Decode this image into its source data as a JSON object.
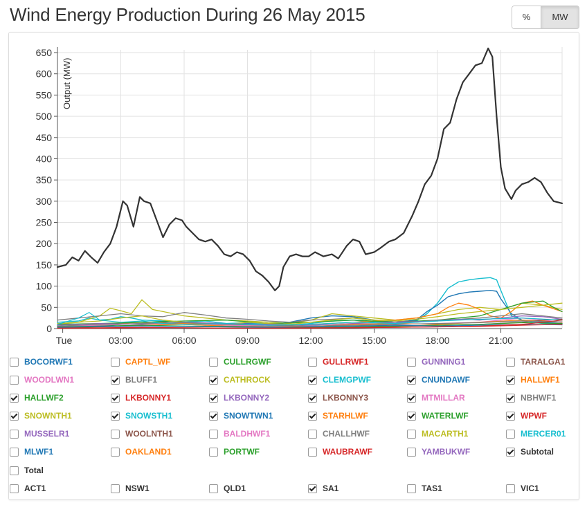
{
  "title": "Wind Energy Production During 26 May 2015",
  "unit_toggle": {
    "percent_label": "%",
    "mw_label": "MW",
    "active": "MW"
  },
  "colors": {
    "subtotal": "#333333",
    "grid": "#e2e2e2",
    "axis": "#555555"
  },
  "chart_data": {
    "type": "line",
    "title": "Wind Energy Production During 26 May 2015",
    "ylabel": "Output (MW)",
    "xlabel": "",
    "ylim": [
      0,
      660
    ],
    "yticks": [
      0,
      50,
      100,
      150,
      200,
      250,
      300,
      350,
      400,
      450,
      500,
      550,
      600,
      650
    ],
    "xlim": [
      0,
      23.9
    ],
    "xticks": [
      {
        "h": 0.25,
        "label": "Tue"
      },
      {
        "h": 3,
        "label": "03:00"
      },
      {
        "h": 6,
        "label": "06:00"
      },
      {
        "h": 9,
        "label": "09:00"
      },
      {
        "h": 12,
        "label": "12:00"
      },
      {
        "h": 15,
        "label": "15:00"
      },
      {
        "h": 18,
        "label": "18:00"
      },
      {
        "h": 21,
        "label": "21:00"
      }
    ],
    "x_unit": "hours since 00:00",
    "series": [
      {
        "name": "Subtotal",
        "color": "#333333",
        "width": 2.2,
        "x": [
          0,
          0.4,
          0.7,
          1,
          1.3,
          1.6,
          1.9,
          2.2,
          2.5,
          2.8,
          3.1,
          3.3,
          3.6,
          3.9,
          4.1,
          4.4,
          4.7,
          5,
          5.3,
          5.6,
          5.9,
          6.1,
          6.4,
          6.7,
          7,
          7.3,
          7.6,
          7.9,
          8.2,
          8.5,
          8.8,
          9.1,
          9.4,
          9.7,
          10,
          10.3,
          10.5,
          10.7,
          11,
          11.3,
          11.6,
          11.9,
          12.2,
          12.6,
          13,
          13.3,
          13.7,
          14,
          14.3,
          14.6,
          15,
          15.3,
          15.7,
          16,
          16.4,
          16.8,
          17.1,
          17.4,
          17.7,
          18,
          18.3,
          18.6,
          18.9,
          19.2,
          19.5,
          19.8,
          20.1,
          20.4,
          20.6,
          20.8,
          21,
          21.2,
          21.5,
          21.7,
          22,
          22.3,
          22.6,
          22.9,
          23.2,
          23.5,
          23.9
        ],
        "y": [
          145,
          150,
          168,
          160,
          183,
          168,
          155,
          180,
          200,
          240,
          300,
          290,
          240,
          310,
          300,
          295,
          255,
          215,
          245,
          260,
          255,
          240,
          225,
          210,
          205,
          210,
          195,
          175,
          170,
          180,
          175,
          160,
          135,
          125,
          110,
          90,
          100,
          145,
          170,
          175,
          170,
          170,
          180,
          170,
          175,
          165,
          195,
          210,
          205,
          175,
          180,
          190,
          205,
          210,
          225,
          265,
          300,
          340,
          360,
          400,
          470,
          485,
          540,
          580,
          600,
          620,
          625,
          660,
          640,
          500,
          380,
          330,
          305,
          325,
          340,
          345,
          355,
          345,
          320,
          300,
          295
        ]
      },
      {
        "name": "CLEMGPWF",
        "color": "#17becf",
        "width": 1.4,
        "x": [
          0,
          1,
          1.5,
          2,
          2.5,
          3,
          3.5,
          4,
          5,
          6,
          7,
          8,
          9,
          10,
          11,
          12,
          13,
          14,
          15,
          16,
          17,
          17.5,
          18,
          18.5,
          19,
          19.5,
          20,
          20.5,
          20.8,
          21,
          21.5,
          22,
          22.5,
          23,
          23.9
        ],
        "y": [
          15,
          18,
          25,
          20,
          22,
          28,
          25,
          20,
          18,
          15,
          18,
          12,
          14,
          10,
          8,
          12,
          18,
          20,
          15,
          12,
          18,
          35,
          60,
          95,
          110,
          115,
          118,
          120,
          115,
          90,
          30,
          20,
          15,
          12,
          10
        ]
      },
      {
        "name": "SNOWTWN1",
        "color": "#1f77b4",
        "width": 1.4,
        "x": [
          0,
          1,
          2,
          3,
          4,
          5,
          6,
          7,
          8,
          9,
          10,
          11,
          12,
          13,
          14,
          15,
          16,
          17,
          17.5,
          18,
          18.5,
          19,
          19.5,
          20,
          20.5,
          20.8,
          21,
          21.5,
          22,
          23,
          23.9
        ],
        "y": [
          5,
          8,
          6,
          10,
          12,
          15,
          10,
          8,
          10,
          12,
          8,
          15,
          25,
          30,
          28,
          20,
          15,
          20,
          40,
          55,
          75,
          82,
          86,
          88,
          90,
          88,
          70,
          35,
          20,
          15,
          12
        ]
      },
      {
        "name": "CATHROCK",
        "color": "#bcbd22",
        "width": 1.3,
        "x": [
          0,
          1,
          2,
          2.5,
          3,
          3.5,
          4,
          4.5,
          5,
          6,
          7,
          8,
          9,
          10,
          11,
          12,
          13,
          14,
          15,
          16,
          17,
          18,
          19,
          20,
          21,
          22,
          23,
          23.9
        ],
        "y": [
          10,
          15,
          30,
          48,
          42,
          35,
          68,
          45,
          40,
          30,
          25,
          20,
          18,
          15,
          12,
          20,
          35,
          30,
          25,
          20,
          25,
          35,
          45,
          50,
          45,
          60,
          55,
          45
        ]
      },
      {
        "name": "HALLWF1",
        "color": "#ff7f0e",
        "width": 1.3,
        "x": [
          0,
          2,
          4,
          6,
          8,
          10,
          12,
          14,
          16,
          17,
          18,
          18.5,
          19,
          19.5,
          20,
          20.5,
          21,
          21.5,
          22,
          22.5,
          23,
          23.9
        ],
        "y": [
          5,
          10,
          15,
          12,
          10,
          8,
          10,
          15,
          20,
          25,
          35,
          50,
          60,
          55,
          45,
          30,
          25,
          40,
          60,
          65,
          55,
          40
        ]
      },
      {
        "name": "WATERLWF",
        "color": "#2ca02c",
        "width": 1.3,
        "x": [
          0,
          2,
          4,
          6,
          8,
          10,
          12,
          14,
          16,
          18,
          19,
          20,
          21,
          22,
          23,
          23.5,
          23.9
        ],
        "y": [
          10,
          12,
          15,
          18,
          20,
          12,
          15,
          20,
          15,
          20,
          25,
          30,
          45,
          60,
          65,
          50,
          40
        ]
      },
      {
        "name": "NBHWF1",
        "color": "#7f7f7f",
        "width": 1.3,
        "x": [
          0,
          1,
          2,
          3,
          4,
          5,
          6,
          7,
          8,
          9,
          10,
          11,
          12,
          13,
          14,
          15,
          16,
          17,
          18,
          19,
          20,
          21,
          22,
          23,
          23.9
        ],
        "y": [
          20,
          25,
          30,
          35,
          30,
          28,
          38,
          32,
          25,
          22,
          18,
          15,
          20,
          22,
          25,
          20,
          18,
          15,
          20,
          22,
          25,
          30,
          35,
          30,
          25
        ]
      },
      {
        "name": "SNOWNTH1",
        "color": "#bcbd22",
        "width": 1.3,
        "x": [
          0,
          2,
          3,
          4,
          5,
          6,
          7,
          8,
          9,
          10,
          11,
          12,
          13,
          14,
          15,
          16,
          17,
          18,
          19,
          20,
          21,
          22,
          23,
          23.9
        ],
        "y": [
          12,
          18,
          25,
          30,
          20,
          15,
          12,
          10,
          15,
          12,
          10,
          15,
          20,
          25,
          20,
          18,
          22,
          28,
          35,
          40,
          45,
          50,
          55,
          60
        ]
      },
      {
        "name": "LKBONNY2",
        "color": "#9467bd",
        "width": 1.3,
        "x": [
          0,
          2,
          4,
          6,
          8,
          10,
          12,
          14,
          16,
          18,
          19,
          20,
          21,
          22,
          23,
          23.9
        ],
        "y": [
          8,
          12,
          10,
          15,
          12,
          10,
          8,
          12,
          15,
          18,
          22,
          20,
          25,
          30,
          28,
          22
        ]
      },
      {
        "name": "MTMILLAR",
        "color": "#e377c2",
        "width": 1.3,
        "x": [
          0,
          2,
          4,
          6,
          8,
          10,
          12,
          14,
          16,
          18,
          20,
          21,
          22,
          23,
          23.9
        ],
        "y": [
          5,
          8,
          12,
          10,
          8,
          6,
          5,
          8,
          10,
          12,
          15,
          20,
          25,
          20,
          15
        ]
      },
      {
        "name": "STARHLWF",
        "color": "#ff7f0e",
        "width": 1.2,
        "x": [
          0,
          2,
          4,
          6,
          8,
          10,
          12,
          14,
          16,
          18,
          20,
          22,
          23,
          23.9
        ],
        "y": [
          3,
          5,
          8,
          10,
          6,
          4,
          5,
          10,
          12,
          10,
          15,
          20,
          18,
          15
        ]
      },
      {
        "name": "LKBONNY3",
        "color": "#8c564b",
        "width": 1.2,
        "x": [
          0,
          2,
          4,
          6,
          8,
          10,
          12,
          14,
          16,
          18,
          20,
          22,
          23,
          23.9
        ],
        "y": [
          2,
          4,
          6,
          5,
          4,
          3,
          2,
          3,
          5,
          8,
          10,
          15,
          20,
          22
        ]
      },
      {
        "name": "BLUFF1",
        "color": "#7f7f7f",
        "width": 1.2,
        "x": [
          0,
          2,
          4,
          6,
          8,
          10,
          12,
          14,
          16,
          18,
          20,
          22,
          23.9
        ],
        "y": [
          6,
          10,
          12,
          14,
          10,
          8,
          6,
          8,
          10,
          12,
          14,
          18,
          16
        ]
      },
      {
        "name": "SNOWSTH1",
        "color": "#17becf",
        "width": 1.2,
        "x": [
          0,
          1,
          1.5,
          2,
          3,
          4,
          5,
          6,
          8,
          10,
          12,
          14,
          16,
          18,
          20,
          22,
          23.9
        ],
        "y": [
          10,
          25,
          38,
          20,
          15,
          18,
          12,
          10,
          12,
          8,
          10,
          15,
          12,
          18,
          22,
          25,
          20
        ]
      },
      {
        "name": "HALLWF2",
        "color": "#2ca02c",
        "width": 1.2,
        "x": [
          0,
          2,
          4,
          6,
          8,
          10,
          12,
          14,
          16,
          18,
          20,
          22,
          23.9
        ],
        "y": [
          4,
          6,
          8,
          6,
          5,
          4,
          3,
          5,
          6,
          8,
          10,
          14,
          12
        ]
      },
      {
        "name": "CNUNDAWF",
        "color": "#1f77b4",
        "width": 1.2,
        "x": [
          0,
          2,
          4,
          6,
          8,
          10,
          12,
          14,
          16,
          18,
          20,
          22,
          23.9
        ],
        "y": [
          3,
          5,
          6,
          5,
          4,
          3,
          4,
          6,
          8,
          6,
          8,
          10,
          9
        ]
      },
      {
        "name": "LKBONNY1",
        "color": "#d62728",
        "width": 1.2,
        "x": [
          0,
          2,
          4,
          6,
          8,
          10,
          12,
          14,
          16,
          18,
          20,
          22,
          23,
          23.9
        ],
        "y": [
          1,
          2,
          3,
          2,
          1,
          1,
          2,
          2,
          3,
          4,
          6,
          10,
          15,
          20
        ]
      },
      {
        "name": "WPWF",
        "color": "#d62728",
        "width": 1.2,
        "x": [
          0,
          2,
          4,
          6,
          8,
          10,
          12,
          14,
          16,
          18,
          20,
          22,
          23.9
        ],
        "y": [
          1,
          1,
          2,
          2,
          1,
          1,
          1,
          2,
          3,
          4,
          5,
          8,
          10
        ]
      }
    ]
  },
  "legend": {
    "rows": [
      [
        {
          "label": "BOCORWF1",
          "color": "#1f77b4",
          "checked": false
        },
        {
          "label": "CAPTL_WF",
          "color": "#ff7f0e",
          "checked": false
        },
        {
          "label": "CULLRGWF",
          "color": "#2ca02c",
          "checked": false
        },
        {
          "label": "GULLRWF1",
          "color": "#d62728",
          "checked": false
        },
        {
          "label": "GUNNING1",
          "color": "#9467bd",
          "checked": false
        },
        {
          "label": "TARALGA1",
          "color": "#8c564b",
          "checked": false
        }
      ],
      [
        {
          "label": "WOODLWN1",
          "color": "#e377c2",
          "checked": false
        },
        {
          "label": "BLUFF1",
          "color": "#7f7f7f",
          "checked": true
        },
        {
          "label": "CATHROCK",
          "color": "#bcbd22",
          "checked": true
        },
        {
          "label": "CLEMGPWF",
          "color": "#17becf",
          "checked": true
        },
        {
          "label": "CNUNDAWF",
          "color": "#1f77b4",
          "checked": true
        },
        {
          "label": "HALLWF1",
          "color": "#ff7f0e",
          "checked": true
        }
      ],
      [
        {
          "label": "HALLWF2",
          "color": "#2ca02c",
          "checked": true
        },
        {
          "label": "LKBONNY1",
          "color": "#d62728",
          "checked": true
        },
        {
          "label": "LKBONNY2",
          "color": "#9467bd",
          "checked": true
        },
        {
          "label": "LKBONNY3",
          "color": "#8c564b",
          "checked": true
        },
        {
          "label": "MTMILLAR",
          "color": "#e377c2",
          "checked": true
        },
        {
          "label": "NBHWF1",
          "color": "#7f7f7f",
          "checked": true
        }
      ],
      [
        {
          "label": "SNOWNTH1",
          "color": "#bcbd22",
          "checked": true
        },
        {
          "label": "SNOWSTH1",
          "color": "#17becf",
          "checked": true
        },
        {
          "label": "SNOWTWN1",
          "color": "#1f77b4",
          "checked": true
        },
        {
          "label": "STARHLWF",
          "color": "#ff7f0e",
          "checked": true
        },
        {
          "label": "WATERLWF",
          "color": "#2ca02c",
          "checked": true
        },
        {
          "label": "WPWF",
          "color": "#d62728",
          "checked": true
        }
      ],
      [
        {
          "label": "MUSSELR1",
          "color": "#9467bd",
          "checked": false
        },
        {
          "label": "WOOLNTH1",
          "color": "#8c564b",
          "checked": false
        },
        {
          "label": "BALDHWF1",
          "color": "#e377c2",
          "checked": false
        },
        {
          "label": "CHALLHWF",
          "color": "#7f7f7f",
          "checked": false
        },
        {
          "label": "MACARTH1",
          "color": "#bcbd22",
          "checked": false
        },
        {
          "label": "MERCER01",
          "color": "#17becf",
          "checked": false
        }
      ],
      [
        {
          "label": "MLWF1",
          "color": "#1f77b4",
          "checked": false
        },
        {
          "label": "OAKLAND1",
          "color": "#ff7f0e",
          "checked": false
        },
        {
          "label": "PORTWF",
          "color": "#2ca02c",
          "checked": false
        },
        {
          "label": "WAUBRAWF",
          "color": "#d62728",
          "checked": false
        },
        {
          "label": "YAMBUKWF",
          "color": "#9467bd",
          "checked": false
        },
        {
          "label": "Subtotal",
          "color": "#333333",
          "checked": true
        }
      ],
      [
        {
          "label": "Total",
          "color": "#333333",
          "checked": false
        }
      ],
      [
        {
          "label": "ACT1",
          "color": "#333333",
          "checked": false
        },
        {
          "label": "NSW1",
          "color": "#333333",
          "checked": false
        },
        {
          "label": "QLD1",
          "color": "#333333",
          "checked": false
        },
        {
          "label": "SA1",
          "color": "#333333",
          "checked": true
        },
        {
          "label": "TAS1",
          "color": "#333333",
          "checked": false
        },
        {
          "label": "VIC1",
          "color": "#333333",
          "checked": false
        }
      ]
    ]
  }
}
